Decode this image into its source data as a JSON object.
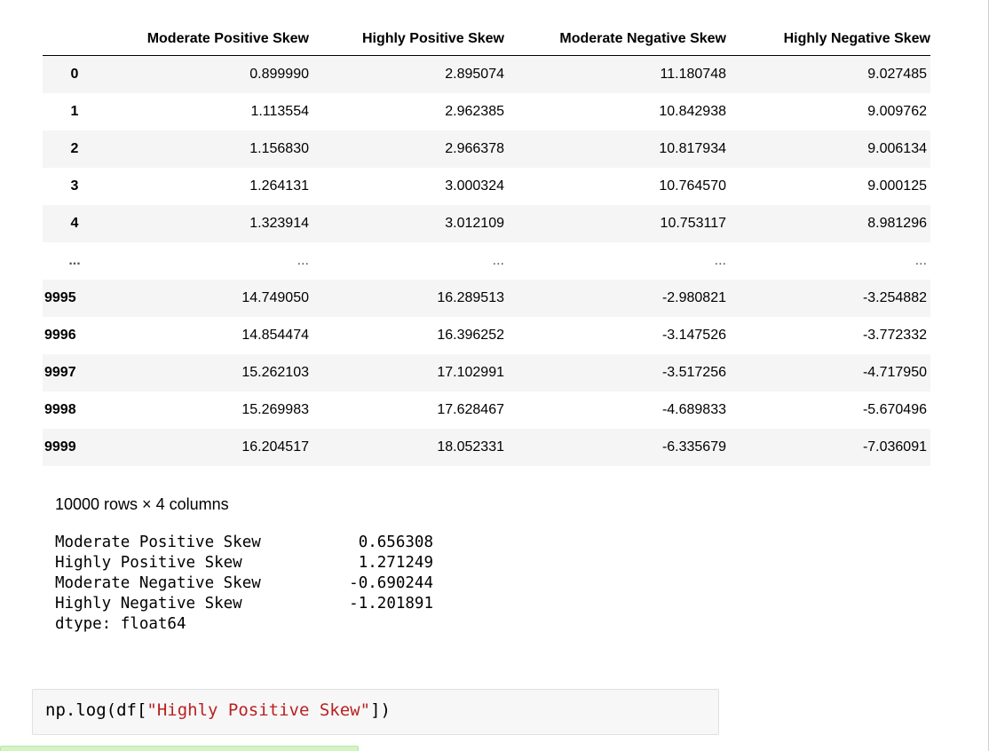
{
  "dataframe": {
    "columns": [
      "Moderate Positive Skew",
      "Highly Positive Skew",
      "Moderate Negative Skew",
      "Highly Negative Skew"
    ],
    "rows": [
      {
        "index": "0",
        "values": [
          "0.899990",
          "2.895074",
          "11.180748",
          "9.027485"
        ]
      },
      {
        "index": "1",
        "values": [
          "1.113554",
          "2.962385",
          "10.842938",
          "9.009762"
        ]
      },
      {
        "index": "2",
        "values": [
          "1.156830",
          "2.966378",
          "10.817934",
          "9.006134"
        ]
      },
      {
        "index": "3",
        "values": [
          "1.264131",
          "3.000324",
          "10.764570",
          "9.000125"
        ]
      },
      {
        "index": "4",
        "values": [
          "1.323914",
          "3.012109",
          "10.753117",
          "8.981296"
        ]
      },
      {
        "index": "...",
        "values": [
          "...",
          "...",
          "...",
          "..."
        ]
      },
      {
        "index": "9995",
        "values": [
          "14.749050",
          "16.289513",
          "-2.980821",
          "-3.254882"
        ]
      },
      {
        "index": "9996",
        "values": [
          "14.854474",
          "16.396252",
          "-3.147526",
          "-3.772332"
        ]
      },
      {
        "index": "9997",
        "values": [
          "15.262103",
          "17.102991",
          "-3.517256",
          "-4.717950"
        ]
      },
      {
        "index": "9998",
        "values": [
          "15.269983",
          "17.628467",
          "-4.689833",
          "-5.670496"
        ]
      },
      {
        "index": "9999",
        "values": [
          "16.204517",
          "18.052331",
          "-6.335679",
          "-7.036091"
        ]
      }
    ],
    "shape_text": "10000 rows × 4 columns"
  },
  "series_output": {
    "rows": [
      {
        "name": "Moderate Positive Skew",
        "value": "0.656308"
      },
      {
        "name": "Highly Positive Skew",
        "value": "1.271249"
      },
      {
        "name": "Moderate Negative Skew",
        "value": "-0.690244"
      },
      {
        "name": "Highly Negative Skew",
        "value": "-1.201891"
      }
    ],
    "dtype": "dtype: float64"
  },
  "code_cell": {
    "prefix": "np.log(df[",
    "string": "\"Highly Positive Skew\"",
    "suffix": "])"
  },
  "colors": {
    "string_literal": "#ba2121",
    "row_stripe": "#f5f5f5",
    "cell_bg": "#f7f7f7",
    "running_indicator": "#d4f4c6"
  }
}
